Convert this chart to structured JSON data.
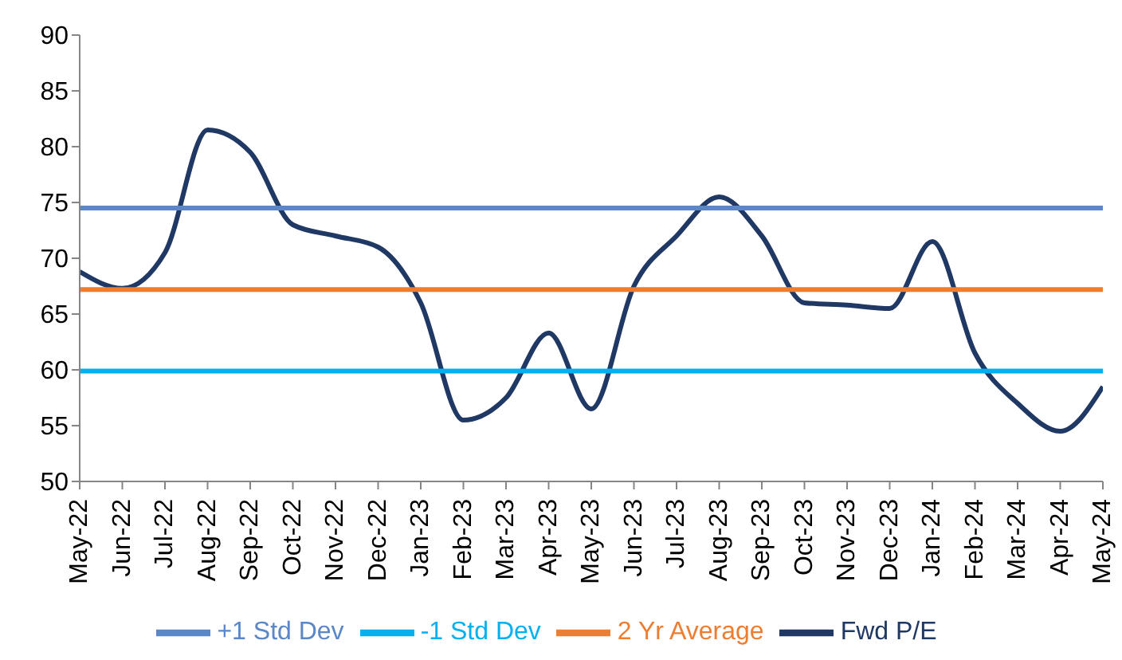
{
  "chart_data": {
    "type": "line",
    "categories": [
      "May-22",
      "Jun-22",
      "Jul-22",
      "Aug-22",
      "Sep-22",
      "Oct-22",
      "Nov-22",
      "Dec-22",
      "Jan-23",
      "Feb-23",
      "Mar-23",
      "Apr-23",
      "May-23",
      "Jun-23",
      "Jul-23",
      "Aug-23",
      "Sep-23",
      "Oct-23",
      "Nov-23",
      "Dec-23",
      "Jan-24",
      "Feb-24",
      "Mar-24",
      "Apr-24",
      "May-24"
    ],
    "series": [
      {
        "name": "Fwd P/E",
        "color": "#1f3864",
        "values": [
          68.8,
          67.3,
          70.5,
          81.5,
          79.5,
          73,
          72,
          71,
          66,
          55.5,
          57.5,
          63.3,
          56.5,
          67.5,
          72,
          75.5,
          72,
          66,
          65.8,
          65.5,
          71.5,
          61.5,
          57,
          54.5,
          58.5
        ]
      },
      {
        "name": "2 Yr Average",
        "color": "#ed7d31",
        "values": [
          67.2,
          67.2,
          67.2,
          67.2,
          67.2,
          67.2,
          67.2,
          67.2,
          67.2,
          67.2,
          67.2,
          67.2,
          67.2,
          67.2,
          67.2,
          67.2,
          67.2,
          67.2,
          67.2,
          67.2,
          67.2,
          67.2,
          67.2,
          67.2,
          67.2
        ]
      },
      {
        "name": "+1 Std Dev",
        "color": "#5b87c7",
        "values": [
          74.5,
          74.5,
          74.5,
          74.5,
          74.5,
          74.5,
          74.5,
          74.5,
          74.5,
          74.5,
          74.5,
          74.5,
          74.5,
          74.5,
          74.5,
          74.5,
          74.5,
          74.5,
          74.5,
          74.5,
          74.5,
          74.5,
          74.5,
          74.5,
          74.5
        ]
      },
      {
        "name": "-1 Std Dev",
        "color": "#00b0f0",
        "values": [
          59.9,
          59.9,
          59.9,
          59.9,
          59.9,
          59.9,
          59.9,
          59.9,
          59.9,
          59.9,
          59.9,
          59.9,
          59.9,
          59.9,
          59.9,
          59.9,
          59.9,
          59.9,
          59.9,
          59.9,
          59.9,
          59.9,
          59.9,
          59.9,
          59.9
        ]
      }
    ],
    "ylim": [
      50,
      90
    ],
    "yticks": [
      50,
      55,
      60,
      65,
      70,
      75,
      80,
      85,
      90
    ],
    "legend": "bottom",
    "marker": "none",
    "line_style": "solid"
  }
}
